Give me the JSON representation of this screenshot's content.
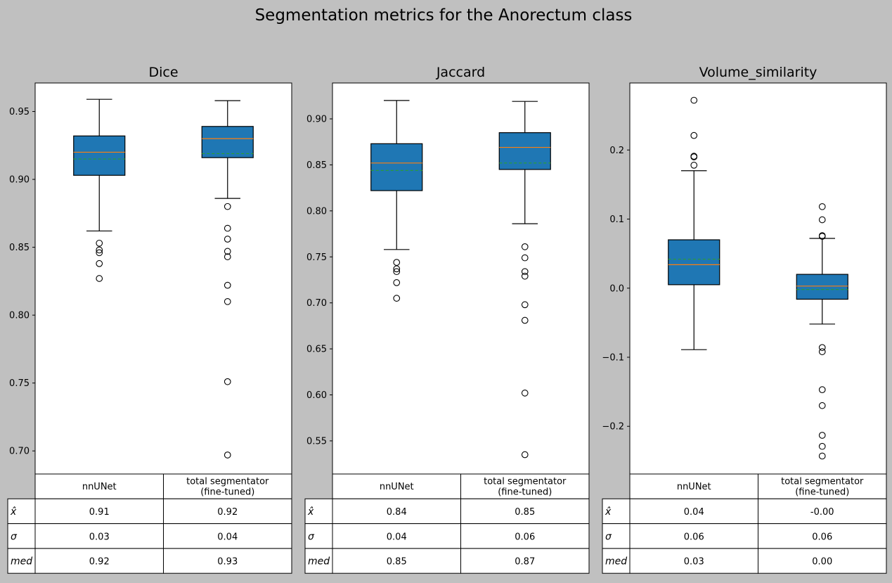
{
  "figure": {
    "title": "Segmentation metrics for the Anorectum class"
  },
  "chart_data": [
    {
      "type": "box",
      "title": "Dice",
      "categories": [
        "nnUNet",
        "total segmentator\n(fine-tuned)"
      ],
      "ylim": [
        0.683,
        0.971
      ],
      "yticks": [
        0.7,
        0.75,
        0.8,
        0.85,
        0.9,
        0.95
      ],
      "ytick_labels": [
        "0.70",
        "0.75",
        "0.80",
        "0.85",
        "0.90",
        "0.95"
      ],
      "grid": false,
      "series": [
        {
          "whisker_low": 0.862,
          "q1": 0.903,
          "median": 0.92,
          "mean": 0.915,
          "q3": 0.932,
          "whisker_high": 0.959,
          "outliers": [
            0.853,
            0.848,
            0.846,
            0.838,
            0.827
          ]
        },
        {
          "whisker_low": 0.886,
          "q1": 0.916,
          "median": 0.93,
          "mean": 0.919,
          "q3": 0.939,
          "whisker_high": 0.958,
          "outliers": [
            0.88,
            0.864,
            0.856,
            0.847,
            0.843,
            0.822,
            0.81,
            0.751,
            0.697
          ]
        }
      ],
      "table": {
        "col_labels": [
          "nnUNet",
          "total segmentator\n(fine-tuned)"
        ],
        "rows": [
          {
            "label": "x̂",
            "values": [
              "0.91",
              "0.92"
            ]
          },
          {
            "label": "σ",
            "values": [
              "0.03",
              "0.04"
            ]
          },
          {
            "label": "med",
            "values": [
              "0.92",
              "0.93"
            ]
          }
        ]
      }
    },
    {
      "type": "box",
      "title": "Jaccard",
      "categories": [
        "nnUNet",
        "total segmentator\n(fine-tuned)"
      ],
      "ylim": [
        0.514,
        0.939
      ],
      "yticks": [
        0.55,
        0.6,
        0.65,
        0.7,
        0.75,
        0.8,
        0.85,
        0.9
      ],
      "ytick_labels": [
        "0.55",
        "0.60",
        "0.65",
        "0.70",
        "0.75",
        "0.80",
        "0.85",
        "0.90"
      ],
      "grid": false,
      "series": [
        {
          "whisker_low": 0.758,
          "q1": 0.822,
          "median": 0.852,
          "mean": 0.844,
          "q3": 0.873,
          "whisker_high": 0.92,
          "outliers": [
            0.744,
            0.737,
            0.734,
            0.722,
            0.705
          ]
        },
        {
          "whisker_low": 0.786,
          "q1": 0.845,
          "median": 0.869,
          "mean": 0.852,
          "q3": 0.885,
          "whisker_high": 0.919,
          "outliers": [
            0.761,
            0.749,
            0.734,
            0.729,
            0.698,
            0.681,
            0.602,
            0.535
          ]
        }
      ],
      "table": {
        "col_labels": [
          "nnUNet",
          "total segmentator\n(fine-tuned)"
        ],
        "rows": [
          {
            "label": "x̂",
            "values": [
              "0.84",
              "0.85"
            ]
          },
          {
            "label": "σ",
            "values": [
              "0.04",
              "0.06"
            ]
          },
          {
            "label": "med",
            "values": [
              "0.85",
              "0.87"
            ]
          }
        ]
      }
    },
    {
      "type": "box",
      "title": "Volume_similarity",
      "categories": [
        "nnUNet",
        "total segmentator\n(fine-tuned)"
      ],
      "ylim": [
        -0.269,
        0.297
      ],
      "yticks": [
        -0.2,
        -0.1,
        0.0,
        0.1,
        0.2
      ],
      "ytick_labels": [
        "−0.2",
        "−0.1",
        "0.0",
        "0.1",
        "0.2"
      ],
      "grid": false,
      "series": [
        {
          "whisker_low": -0.089,
          "q1": 0.005,
          "median": 0.034,
          "mean": 0.042,
          "q3": 0.07,
          "whisker_high": 0.17,
          "outliers": [
            0.272,
            0.221,
            0.191,
            0.19,
            0.178
          ]
        },
        {
          "whisker_low": -0.052,
          "q1": -0.016,
          "median": 0.003,
          "mean": -0.002,
          "q3": 0.02,
          "whisker_high": 0.072,
          "outliers": [
            0.118,
            0.099,
            0.076,
            0.075,
            -0.086,
            -0.092,
            -0.147,
            -0.17,
            -0.213,
            -0.229,
            -0.243
          ]
        }
      ],
      "table": {
        "col_labels": [
          "nnUNet",
          "total segmentator\n(fine-tuned)"
        ],
        "rows": [
          {
            "label": "x̂",
            "values": [
              "0.04",
              "-0.00"
            ]
          },
          {
            "label": "σ",
            "values": [
              "0.06",
              "0.06"
            ]
          },
          {
            "label": "med",
            "values": [
              "0.03",
              "0.00"
            ]
          }
        ]
      }
    }
  ],
  "colors": {
    "background": "#c0c0c0",
    "box_fill": "#1f77b4",
    "median_line": "#ff7f0e",
    "mean_line": "#2ca02c",
    "axes_face": "#ffffff"
  }
}
